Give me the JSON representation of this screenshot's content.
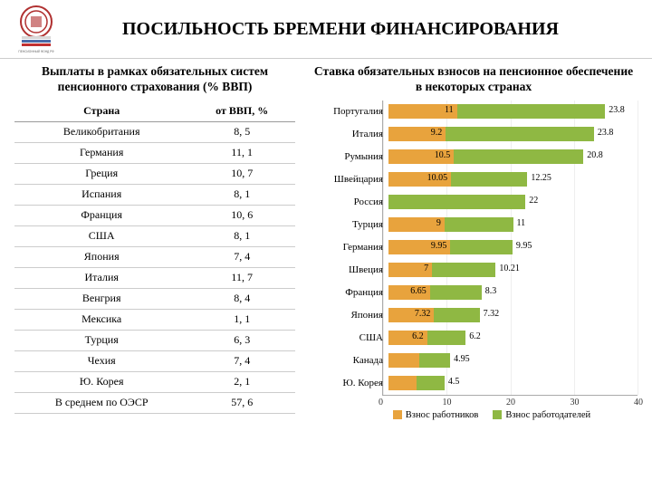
{
  "title": "ПОСИЛЬНОСТЬ БРЕМЕНИ ФИНАНСИРОВАНИЯ",
  "logo_caption": "ПЕНСИОННЫЙ ФОНД РОССИЙСКОЙ ФЕДЕРАЦИИ",
  "left": {
    "title": "Выплаты в рамках обязательных систем пенсионного страхования (% ВВП)",
    "col1": "Страна",
    "col2": "от ВВП, %",
    "rows": [
      {
        "c": "Великобритания",
        "v": "8, 5"
      },
      {
        "c": "Германия",
        "v": "11, 1"
      },
      {
        "c": "Греция",
        "v": "10, 7"
      },
      {
        "c": "Испания",
        "v": "8, 1"
      },
      {
        "c": "Франция",
        "v": "10, 6"
      },
      {
        "c": "США",
        "v": "8, 1"
      },
      {
        "c": "Япония",
        "v": "7, 4"
      },
      {
        "c": "Италия",
        "v": "11, 7"
      },
      {
        "c": "Венгрия",
        "v": "8, 4"
      },
      {
        "c": "Мексика",
        "v": "1, 1"
      },
      {
        "c": "Турция",
        "v": "6, 3"
      },
      {
        "c": "Чехия",
        "v": "7, 4"
      },
      {
        "c": "Ю. Корея",
        "v": "2, 1"
      },
      {
        "c": "В среднем по ОЭСР",
        "v": "57, 6"
      }
    ]
  },
  "right": {
    "title": "Ставка обязательных взносов на пенсионное обеспечение в некоторых странах",
    "chart": {
      "type": "stacked-bar-horizontal",
      "xmax": 40,
      "xticks": [
        0,
        10,
        20,
        30,
        40
      ],
      "color_employee": "#e8a33d",
      "color_employer": "#8fb843",
      "grid_color": "#eeeeee",
      "legend_employee": "Взнос работников",
      "legend_employer": "Взнос работодателей",
      "rows": [
        {
          "label": "Португалия",
          "a": 11,
          "b": 23.8,
          "la": "11",
          "lb": "23.8"
        },
        {
          "label": "Италия",
          "a": 9.2,
          "b": 23.8,
          "la": "9.2",
          "lb": "23.8"
        },
        {
          "label": "Румыния",
          "a": 10.5,
          "b": 20.8,
          "la": "10.5",
          "lb": "20.8"
        },
        {
          "label": "Швейцария",
          "a": 10.05,
          "b": 12.25,
          "la": "10.05",
          "lb": "12.25"
        },
        {
          "label": "Россия",
          "a": 0,
          "b": 22,
          "la": "0",
          "lb": "22"
        },
        {
          "label": "Турция",
          "a": 9,
          "b": 11,
          "la": "9",
          "lb": "11"
        },
        {
          "label": "Германия",
          "a": 9.95,
          "b": 9.95,
          "la": "9.95",
          "lb": "9.95"
        },
        {
          "label": "Швеция",
          "a": 7,
          "b": 10.21,
          "la": "7",
          "lb": "10.21"
        },
        {
          "label": "Франция",
          "a": 6.65,
          "b": 8.3,
          "la": "6.65",
          "lb": "8.3"
        },
        {
          "label": "Япония",
          "a": 7.32,
          "b": 7.32,
          "la": "7.32",
          "lb": "7.32"
        },
        {
          "label": "США",
          "a": 6.2,
          "b": 6.2,
          "la": "6.2",
          "lb": "6.2"
        },
        {
          "label": "Канада",
          "a": 4.95,
          "b": 4.95,
          "la": "4.95",
          "lb": "4.95"
        },
        {
          "label": "Ю. Корея",
          "a": 4.5,
          "b": 4.5,
          "la": "4.5",
          "lb": "4.5"
        }
      ]
    }
  }
}
